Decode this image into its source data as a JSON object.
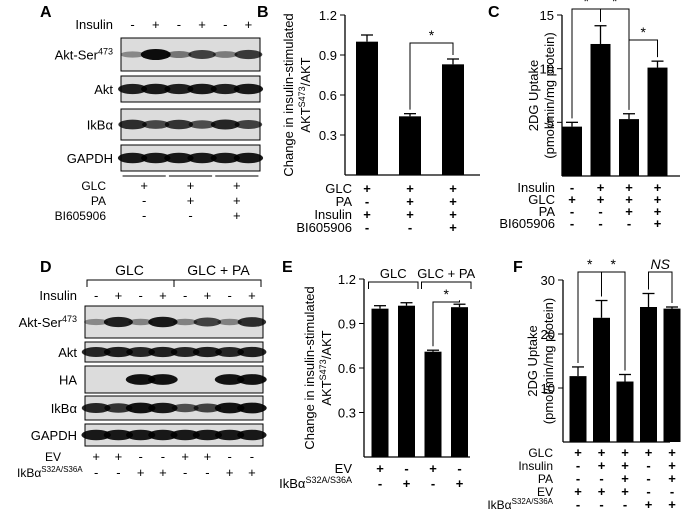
{
  "panel_letters": [
    "A",
    "B",
    "C",
    "D",
    "E",
    "F"
  ],
  "panel_A": {
    "insulin_label": "Insulin",
    "insulin_signs": [
      "-",
      "+",
      "-",
      "+",
      "-",
      "+"
    ],
    "bands": [
      {
        "label_main": "Akt-Ser",
        "label_sup": "473"
      },
      {
        "label_main": "Akt",
        "label_sup": ""
      },
      {
        "label_main": "IkBα",
        "label_sup": ""
      },
      {
        "label_main": "GAPDH",
        "label_sup": ""
      }
    ],
    "conditions": [
      {
        "label": "GLC",
        "signs": [
          "+",
          "+",
          "+"
        ]
      },
      {
        "label": "PA",
        "signs": [
          "-",
          "+",
          "+"
        ]
      },
      {
        "label": "BI605906",
        "signs": [
          "-",
          "-",
          "+"
        ]
      }
    ]
  },
  "panel_D": {
    "group_labels": [
      "GLC",
      "GLC + PA"
    ],
    "insulin_label": "Insulin",
    "insulin_signs": [
      "-",
      "+",
      "-",
      "+",
      "-",
      "+",
      "-",
      "+"
    ],
    "bands": [
      {
        "label_main": "Akt-Ser",
        "label_sup": "473"
      },
      {
        "label_main": "Akt",
        "label_sup": ""
      },
      {
        "label_main": "HA",
        "label_sup": ""
      },
      {
        "label_main": "IkBα",
        "label_sup": ""
      },
      {
        "label_main": "GAPDH",
        "label_sup": ""
      }
    ],
    "conditions": [
      {
        "label": "EV",
        "sup": "",
        "signs": [
          "+",
          "+",
          "-",
          "-",
          "+",
          "+",
          "-",
          "-"
        ]
      },
      {
        "label": "IkBα",
        "sup": "S32A/S36A",
        "signs": [
          "-",
          "-",
          "+",
          "+",
          "-",
          "-",
          "+",
          "+"
        ]
      }
    ]
  },
  "chart_data": [
    {
      "panel": "B",
      "type": "bar",
      "ylabel_line1": "Change in insulin-stimulated",
      "ylabel_line2_main": "AKT",
      "ylabel_line2_sup": "S473",
      "ylabel_line2_tail": "/AKT",
      "ylim": [
        0,
        1.2
      ],
      "yticks": [
        "0.3",
        "0.6",
        "0.9",
        "1.2"
      ],
      "ytick_values": [
        0.3,
        0.6,
        0.9,
        1.2
      ],
      "values": [
        1.0,
        0.44,
        0.83
      ],
      "errors": [
        0.05,
        0.02,
        0.04
      ],
      "conditions": [
        {
          "label": "GLC",
          "signs": [
            "+",
            "+",
            "+"
          ]
        },
        {
          "label": "PA",
          "signs": [
            "-",
            "+",
            "+"
          ]
        },
        {
          "label": "Insulin",
          "signs": [
            "+",
            "+",
            "+"
          ]
        },
        {
          "label": "BI605906",
          "signs": [
            "-",
            "-",
            "+"
          ]
        }
      ],
      "significance": [
        {
          "from": 1,
          "to": 2,
          "text": "*"
        }
      ]
    },
    {
      "panel": "C",
      "type": "bar",
      "ylabel_line1": "2DG Uptake",
      "ylabel_line2": "(pmol/min/mg protein)",
      "ylim": [
        0,
        15
      ],
      "yticks": [
        "5",
        "10",
        "15"
      ],
      "ytick_values": [
        5,
        10,
        15
      ],
      "values": [
        4.6,
        12.3,
        5.3,
        10.1
      ],
      "errors": [
        0.4,
        1.7,
        0.5,
        0.6
      ],
      "conditions": [
        {
          "label": "Insulin",
          "signs": [
            "-",
            "+",
            "+",
            "+"
          ]
        },
        {
          "label": "GLC",
          "signs": [
            "+",
            "+",
            "+",
            "+"
          ]
        },
        {
          "label": "PA",
          "signs": [
            "-",
            "-",
            "+",
            "+"
          ]
        },
        {
          "label": "BI605906",
          "signs": [
            "-",
            "-",
            "-",
            "+"
          ]
        }
      ],
      "significance": [
        {
          "from": 0,
          "to": 1,
          "text": "*"
        },
        {
          "from": 1,
          "to": 2,
          "text": "*"
        },
        {
          "from": 2,
          "to": 3,
          "text": "*"
        }
      ]
    },
    {
      "panel": "E",
      "type": "bar",
      "ylabel_line1": "Change in insulin-stimulated",
      "ylabel_line2_main": "AKT",
      "ylabel_line2_sup": "S473",
      "ylabel_line2_tail": "/AKT",
      "ylim": [
        0,
        1.2
      ],
      "yticks": [
        "0.3",
        "0.6",
        "0.9",
        "1.2"
      ],
      "ytick_values": [
        0.3,
        0.6,
        0.9,
        1.2
      ],
      "values": [
        1.0,
        1.02,
        0.71,
        1.01
      ],
      "errors": [
        0.02,
        0.02,
        0.01,
        0.02
      ],
      "group_labels": [
        "GLC",
        "GLC + PA"
      ],
      "conditions": [
        {
          "label": "EV",
          "sup": "",
          "signs": [
            "+",
            "-",
            "+",
            "-"
          ]
        },
        {
          "label": "IkBα",
          "sup": "S32A/S36A",
          "signs": [
            "-",
            "+",
            "-",
            "+"
          ]
        }
      ],
      "significance": [
        {
          "from": 2,
          "to": 3,
          "text": "*"
        }
      ]
    },
    {
      "panel": "F",
      "type": "bar",
      "ylabel_line1": "2DG Uptake",
      "ylabel_line2": "(pmol/min/mg protein)",
      "ylim": [
        0,
        30
      ],
      "yticks": [
        "10",
        "20",
        "30"
      ],
      "ytick_values": [
        10,
        20,
        30
      ],
      "values": [
        12.2,
        23.0,
        11.2,
        25.0,
        24.7
      ],
      "errors": [
        1.7,
        3.2,
        1.3,
        2.5,
        0.3
      ],
      "conditions": [
        {
          "label": "GLC",
          "sup": "",
          "signs": [
            "+",
            "+",
            "+",
            "+",
            "+"
          ]
        },
        {
          "label": "Insulin",
          "sup": "",
          "signs": [
            "-",
            "+",
            "+",
            "-",
            "+"
          ]
        },
        {
          "label": "PA",
          "sup": "",
          "signs": [
            "-",
            "-",
            "+",
            "-",
            "+"
          ]
        },
        {
          "label": "EV",
          "sup": "",
          "signs": [
            "+",
            "+",
            "+",
            "-",
            "-"
          ]
        },
        {
          "label": "IkBα",
          "sup": "S32A/S36A",
          "signs": [
            "-",
            "-",
            "-",
            "+",
            "+"
          ]
        }
      ],
      "significance": [
        {
          "from": 0,
          "to": 1,
          "text": "*"
        },
        {
          "from": 1,
          "to": 2,
          "text": "*"
        },
        {
          "from": 3,
          "to": 4,
          "text": "NS"
        }
      ]
    }
  ]
}
